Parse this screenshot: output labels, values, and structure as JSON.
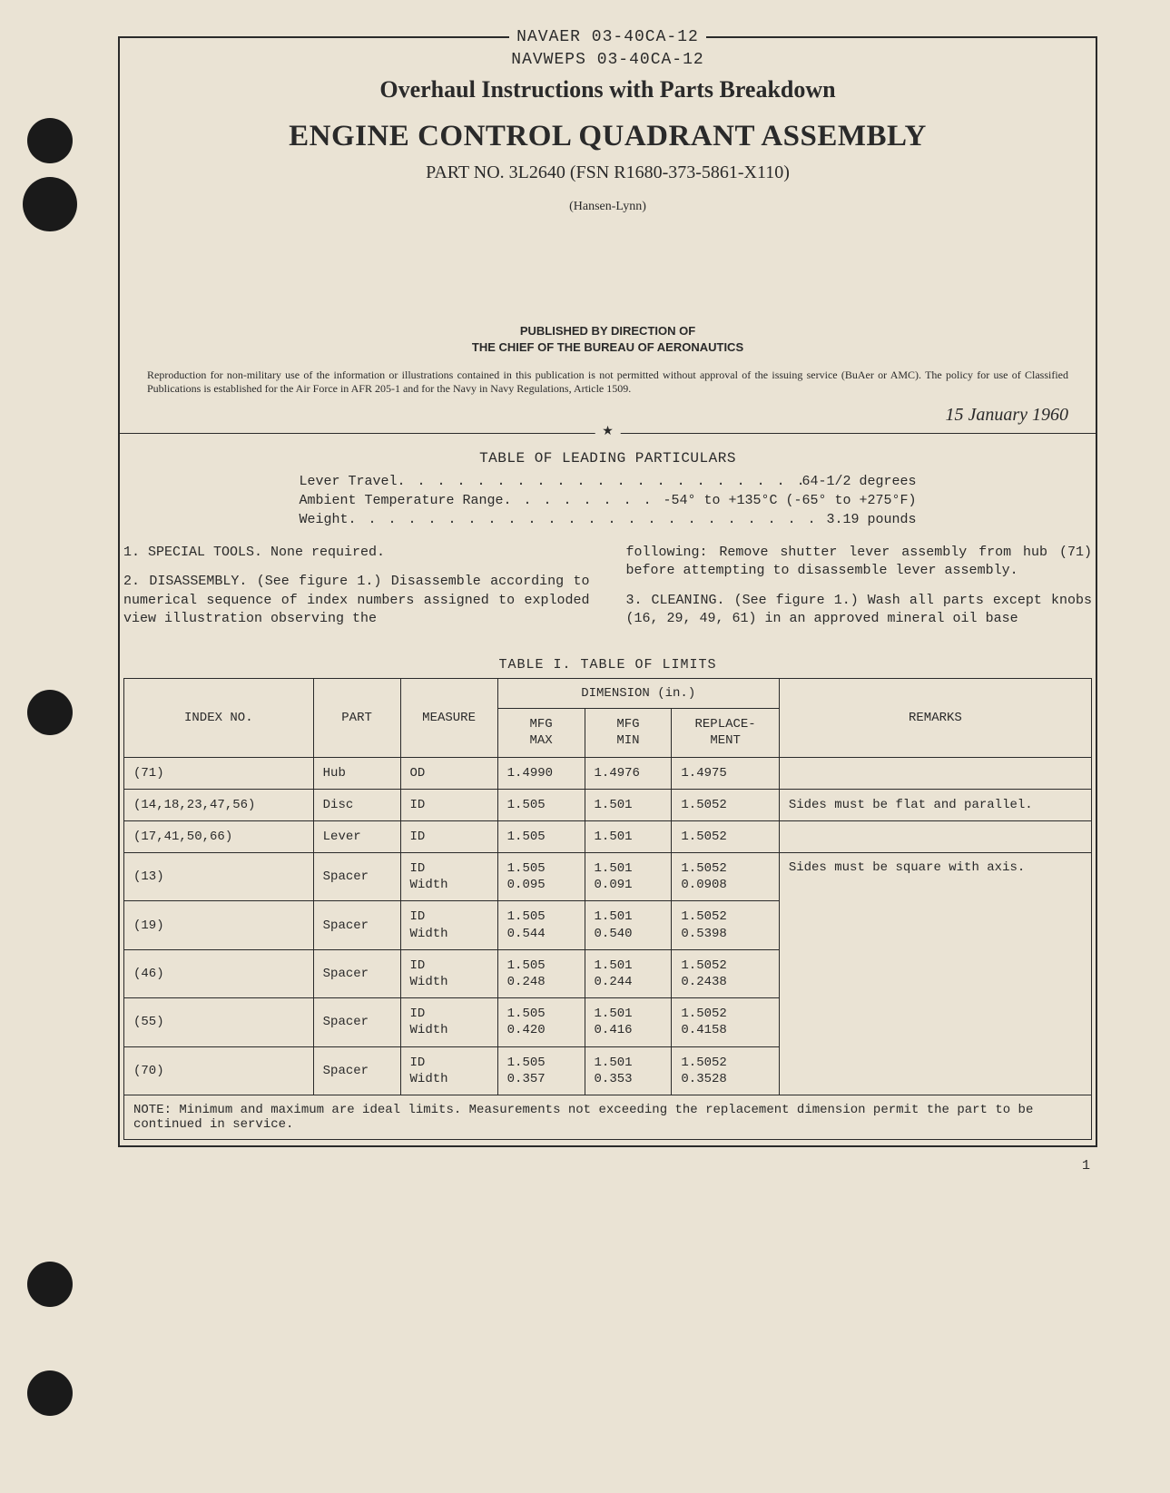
{
  "header": {
    "code1": "NAVAER 03-40CA-12",
    "code2": "NAVWEPS 03-40CA-12",
    "subtitle": "Overhaul Instructions with Parts Breakdown",
    "title": "ENGINE CONTROL QUADRANT ASSEMBLY",
    "partNo": "PART NO. 3L2640 (FSN R1680-373-5861-X110)",
    "company": "(Hansen-Lynn)",
    "publishedLine1": "PUBLISHED BY DIRECTION OF",
    "publishedLine2": "THE CHIEF OF THE BUREAU OF AERONAUTICS",
    "disclaimer": "Reproduction for non-military use of the information or illustrations contained in this publication is not permitted without approval of the issuing service (BuAer or AMC). The policy for use of Classified Publications is established for the Air Force in AFR 205-1 and for the Navy in Navy Regulations, Article 1509.",
    "date": "15 January 1960"
  },
  "particulars": {
    "title": "TABLE OF LEADING PARTICULARS",
    "rows": [
      {
        "label": "Lever Travel",
        "value": "64-1/2 degrees"
      },
      {
        "label": "Ambient Temperature Range",
        "value": "-54° to +135°C (-65° to +275°F)"
      },
      {
        "label": "Weight",
        "value": "3.19 pounds"
      }
    ]
  },
  "body": {
    "p1": "1. SPECIAL TOOLS. None required.",
    "p2": "2. DISASSEMBLY. (See figure 1.) Disassemble according to numerical sequence of index numbers assigned to exploded view illustration observing the",
    "p3": "following: Remove shutter lever assembly from hub (71) before attempting to disassemble lever assembly.",
    "p4": "3. CLEANING. (See figure 1.) Wash all parts except knobs (16, 29, 49, 61) in an approved mineral oil base"
  },
  "table": {
    "title": "TABLE I.  TABLE OF LIMITS",
    "headers": {
      "indexNo": "INDEX NO.",
      "part": "PART",
      "measure": "MEASURE",
      "dimension": "DIMENSION (in.)",
      "mfgMax": "MFG\nMAX",
      "mfgMin": "MFG\nMIN",
      "replacement": "REPLACE-\nMENT",
      "remarks": "REMARKS"
    },
    "rows": [
      {
        "indexNo": "(71)",
        "part": "Hub",
        "measure": "OD",
        "mfgMax": "1.4990",
        "mfgMin": "1.4976",
        "replacement": "1.4975",
        "remarks": ""
      },
      {
        "indexNo": "(14,18,23,47,56)",
        "part": "Disc",
        "measure": "ID",
        "mfgMax": "1.505",
        "mfgMin": "1.501",
        "replacement": "1.5052",
        "remarks": "Sides must be flat and parallel."
      },
      {
        "indexNo": "(17,41,50,66)",
        "part": "Lever",
        "measure": "ID",
        "mfgMax": "1.505",
        "mfgMin": "1.501",
        "replacement": "1.5052",
        "remarks": ""
      },
      {
        "indexNo": "(13)",
        "part": "Spacer",
        "measure": "ID\nWidth",
        "mfgMax": "1.505\n0.095",
        "mfgMin": "1.501\n0.091",
        "replacement": "1.5052\n0.0908",
        "remarks": "Sides must be square with axis."
      },
      {
        "indexNo": "(19)",
        "part": "Spacer",
        "measure": "ID\nWidth",
        "mfgMax": "1.505\n0.544",
        "mfgMin": "1.501\n0.540",
        "replacement": "1.5052\n0.5398",
        "remarks": ""
      },
      {
        "indexNo": "(46)",
        "part": "Spacer",
        "measure": "ID\nWidth",
        "mfgMax": "1.505\n0.248",
        "mfgMin": "1.501\n0.244",
        "replacement": "1.5052\n0.2438",
        "remarks": ""
      },
      {
        "indexNo": "(55)",
        "part": "Spacer",
        "measure": "ID\nWidth",
        "mfgMax": "1.505\n0.420",
        "mfgMin": "1.501\n0.416",
        "replacement": "1.5052\n0.4158",
        "remarks": ""
      },
      {
        "indexNo": "(70)",
        "part": "Spacer",
        "measure": "ID\nWidth",
        "mfgMax": "1.505\n0.357",
        "mfgMin": "1.501\n0.353",
        "replacement": "1.5052\n0.3528",
        "remarks": ""
      }
    ],
    "note": "NOTE: Minimum and maximum are ideal limits. Measurements not exceeding the replacement dimension permit the part to be continued in service."
  },
  "pageNumber": "1",
  "style": {
    "background": "#eae3d4",
    "text": "#2a2a2a",
    "border": "#2a2a2a"
  }
}
